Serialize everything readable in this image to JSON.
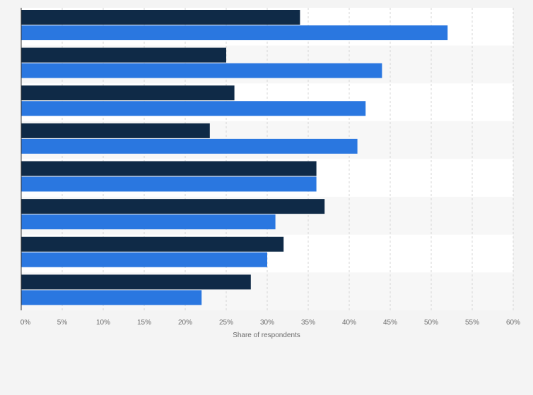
{
  "chart_data": {
    "type": "bar",
    "orientation": "horizontal",
    "title": "",
    "xlabel": "Share of respondents",
    "ylabel": "",
    "xlim": [
      0,
      60
    ],
    "x_ticks": [
      "0%",
      "5%",
      "10%",
      "15%",
      "20%",
      "25%",
      "30%",
      "35%",
      "40%",
      "45%",
      "50%",
      "55%",
      "60%"
    ],
    "grid": true,
    "categories": [
      "",
      "",
      "",
      "",
      "",
      "",
      "",
      ""
    ],
    "series": [
      {
        "color": "#0f2a47",
        "values": [
          34,
          25,
          26,
          23,
          36,
          37,
          32,
          28
        ]
      },
      {
        "color": "#2a77e0",
        "values": [
          52,
          44,
          42,
          41,
          36,
          31,
          30,
          22
        ]
      }
    ]
  }
}
